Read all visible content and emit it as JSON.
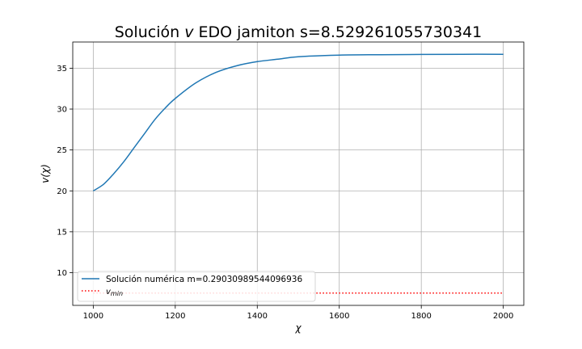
{
  "chart_data": {
    "type": "line",
    "title_parts": {
      "before": "Solución ",
      "symbol": "v",
      "after": " EDO jamiton s=8.529261055730341"
    },
    "xlabel": "χ",
    "ylabel": "v(χ)",
    "xlim": [
      950,
      2050
    ],
    "ylim": [
      6,
      38.2
    ],
    "xticks": [
      1000,
      1200,
      1400,
      1600,
      1800,
      2000
    ],
    "yticks": [
      10,
      15,
      20,
      25,
      30,
      35
    ],
    "grid": true,
    "legend_placement": "lower-left",
    "series": [
      {
        "name": "Solución numérica m=0.29030989544096936",
        "color": "#1f77b4",
        "style": "solid",
        "x": [
          1000,
          1025,
          1050,
          1075,
          1100,
          1125,
          1150,
          1175,
          1200,
          1250,
          1300,
          1350,
          1400,
          1450,
          1500,
          1600,
          1700,
          1800,
          1900,
          2000
        ],
        "y": [
          20.0,
          20.8,
          22.1,
          23.6,
          25.3,
          27.0,
          28.7,
          30.1,
          31.3,
          33.2,
          34.5,
          35.3,
          35.8,
          36.1,
          36.4,
          36.6,
          36.65,
          36.68,
          36.7,
          36.7
        ]
      },
      {
        "name_base": "v",
        "name_sub": "min",
        "color": "#ff0000",
        "style": "dotted",
        "x": [
          1000,
          2000
        ],
        "y": [
          7.5,
          7.5
        ]
      }
    ]
  }
}
